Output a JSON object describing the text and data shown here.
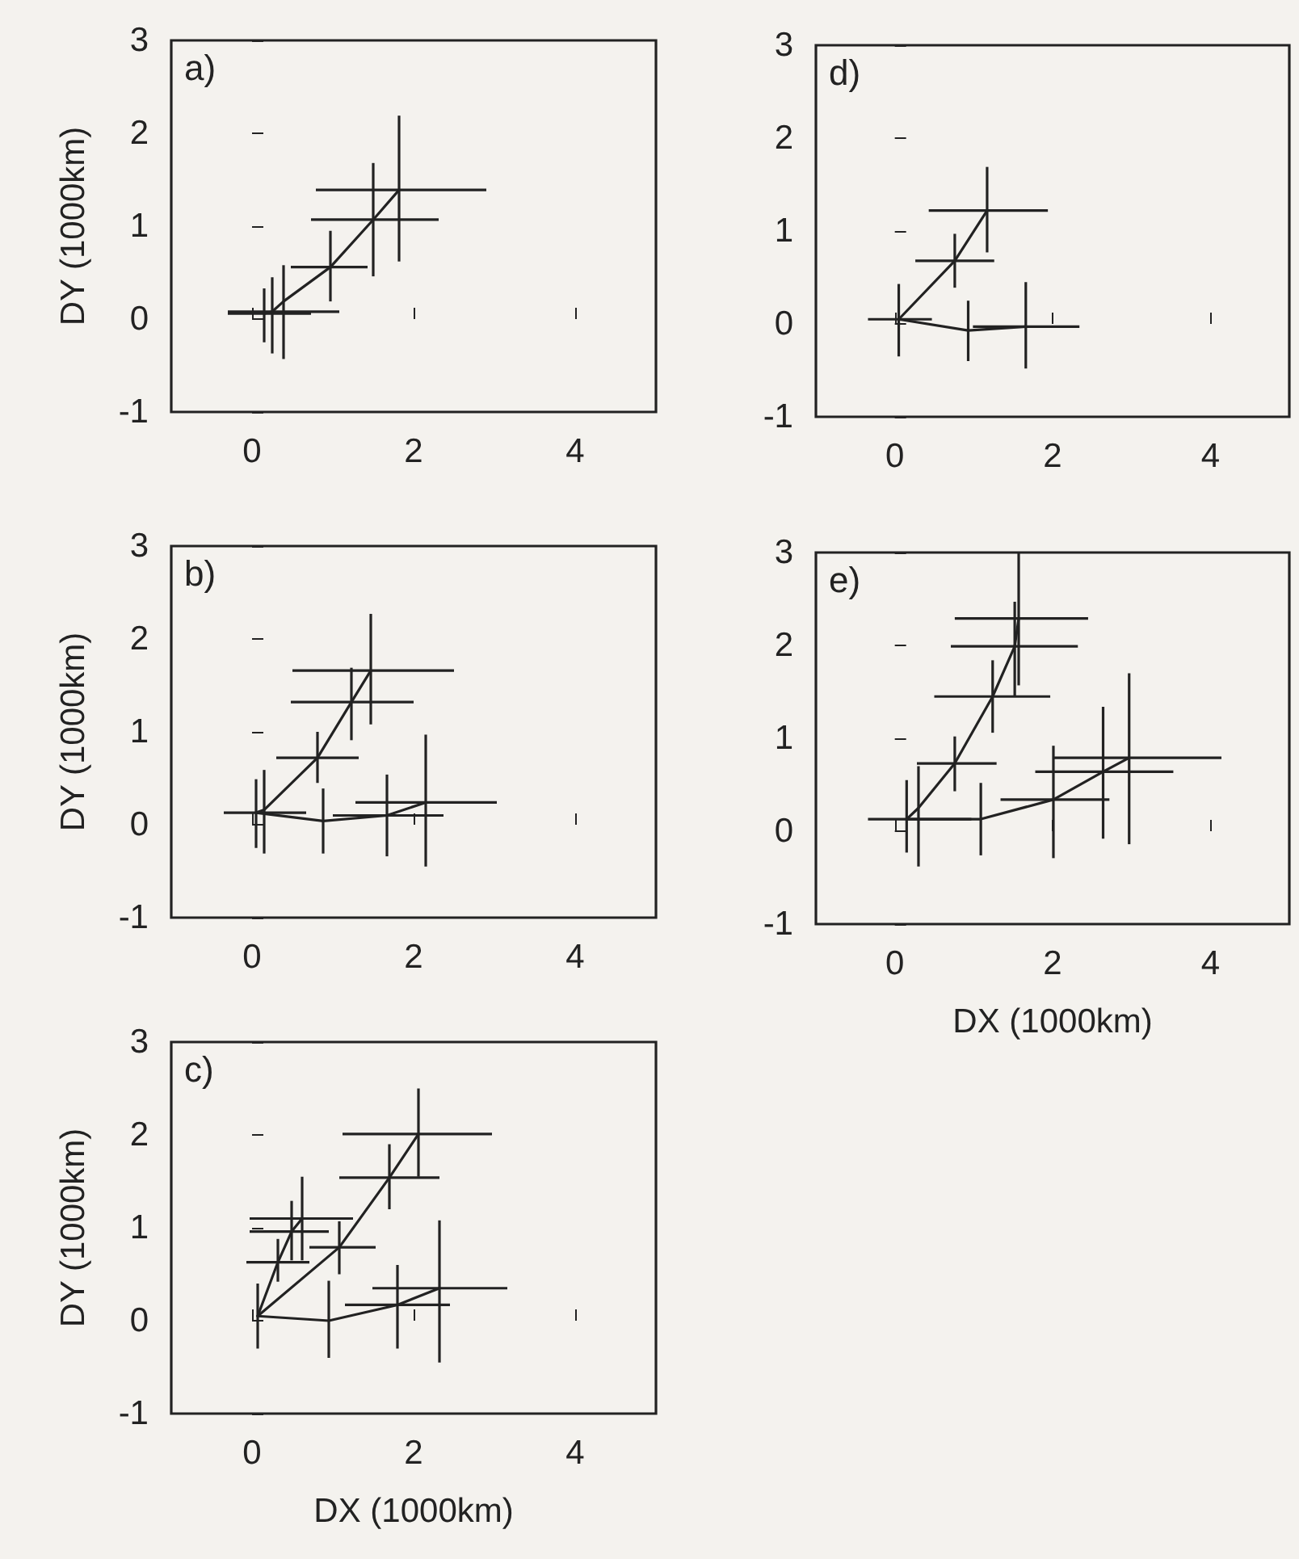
{
  "chart_data": [
    {
      "type": "line",
      "ylabel": "DY (1000km)",
      "annotations": [
        "a)"
      ],
      "xlim": [
        -1,
        5
      ],
      "xticks": [
        0,
        2,
        4
      ],
      "ylim": [
        -1,
        3
      ],
      "yticks": [
        -1,
        0,
        1,
        2,
        3
      ],
      "grid": false,
      "marker": "none",
      "line_style": "solid",
      "series": [
        {
          "color": "#222222",
          "x": [
            0.15,
            0.25,
            0.39,
            0.97,
            1.5,
            1.82
          ],
          "values": [
            0.06,
            0.08,
            0.19,
            0.56,
            1.07,
            1.39
          ],
          "xerrors": [
            [
              -0.3,
              0.73
            ],
            [
              -0.3,
              1.08
            ],
            null,
            [
              0.48,
              1.43
            ],
            [
              0.73,
              2.31
            ],
            [
              0.79,
              2.9
            ]
          ],
          "errors": [
            [
              -0.25,
              0.33
            ],
            [
              -0.37,
              0.45
            ],
            [
              -0.43,
              0.58
            ],
            [
              0.19,
              0.95
            ],
            [
              0.46,
              1.68
            ],
            [
              0.62,
              2.19
            ]
          ]
        }
      ]
    },
    {
      "type": "line",
      "ylabel": "DY (1000km)",
      "annotations": [
        "b)"
      ],
      "xlim": [
        -1,
        5
      ],
      "xticks": [
        0,
        2,
        4
      ],
      "ylim": [
        -1,
        3
      ],
      "yticks": [
        -1,
        0,
        1,
        2,
        3
      ],
      "grid": false,
      "marker": "none",
      "line_style": "solid",
      "series": [
        {
          "color": "#222222",
          "x": [
            0.05,
            0.15,
            0.81,
            1.23,
            1.47
          ],
          "values": [
            0.13,
            0.16,
            0.72,
            1.32,
            1.66
          ],
          "xerrors": [
            [
              -0.35,
              0.67
            ],
            null,
            [
              0.3,
              1.32
            ],
            [
              0.48,
              2.0
            ],
            [
              0.5,
              2.5
            ]
          ],
          "errors": [
            [
              -0.25,
              0.49
            ],
            [
              -0.31,
              0.59
            ],
            [
              0.45,
              1.0
            ],
            [
              0.91,
              1.69
            ],
            [
              1.08,
              2.27
            ]
          ]
        },
        {
          "color": "#222222",
          "x": [
            0.05,
            0.88,
            1.67,
            2.15
          ],
          "values": [
            0.13,
            0.04,
            0.1,
            0.24
          ],
          "xerrors": [
            null,
            null,
            [
              1.0,
              2.37
            ],
            [
              1.28,
              3.03
            ]
          ],
          "errors": [
            null,
            [
              -0.31,
              0.39
            ],
            [
              -0.34,
              0.54
            ],
            [
              -0.45,
              0.97
            ]
          ]
        }
      ]
    },
    {
      "type": "line",
      "ylabel": "DY (1000km)",
      "xlabel": "DX (1000km)",
      "annotations": [
        "c)"
      ],
      "xlim": [
        -1,
        5
      ],
      "xticks": [
        0,
        2,
        4
      ],
      "ylim": [
        -1,
        3
      ],
      "yticks": [
        -1,
        0,
        1,
        2,
        3
      ],
      "grid": false,
      "marker": "none",
      "line_style": "solid",
      "series": [
        {
          "color": "#222222",
          "x": [
            0.07,
            0.32,
            0.49,
            0.62
          ],
          "values": [
            0.05,
            0.63,
            0.96,
            1.1
          ],
          "xerrors": [
            null,
            [
              -0.07,
              0.71
            ],
            [
              -0.03,
              0.95
            ],
            [
              -0.03,
              1.25
            ]
          ],
          "errors": [
            [
              -0.3,
              0.4
            ],
            [
              0.42,
              0.88
            ],
            [
              0.65,
              1.29
            ],
            [
              0.65,
              1.55
            ]
          ]
        },
        {
          "color": "#222222",
          "x": [
            0.07,
            1.08,
            1.7,
            2.06
          ],
          "values": [
            0.05,
            0.79,
            1.54,
            2.01
          ],
          "xerrors": [
            null,
            [
              0.71,
              1.53
            ],
            [
              1.08,
              2.32
            ],
            [
              1.12,
              2.97
            ]
          ],
          "errors": [
            null,
            [
              0.5,
              1.07
            ],
            [
              1.2,
              1.9
            ],
            [
              1.55,
              2.5
            ]
          ]
        },
        {
          "color": "#222222",
          "x": [
            0.07,
            0.95,
            1.8,
            2.32
          ],
          "values": [
            0.05,
            0.0,
            0.17,
            0.35
          ],
          "xerrors": [
            null,
            null,
            [
              1.15,
              2.45
            ],
            [
              1.49,
              3.16
            ]
          ],
          "errors": [
            null,
            [
              -0.4,
              0.43
            ],
            [
              -0.3,
              0.6
            ],
            [
              -0.45,
              1.08
            ]
          ]
        }
      ]
    },
    {
      "type": "line",
      "annotations": [
        "d)"
      ],
      "xlim": [
        -1,
        5
      ],
      "xticks": [
        0,
        2,
        4
      ],
      "ylim": [
        -1,
        3
      ],
      "yticks": [
        -1,
        0,
        1,
        2,
        3
      ],
      "grid": false,
      "marker": "none",
      "line_style": "solid",
      "series": [
        {
          "color": "#222222",
          "x": [
            0.05,
            0.76,
            1.17
          ],
          "values": [
            0.05,
            0.68,
            1.22
          ],
          "xerrors": [
            [
              -0.34,
              0.47
            ],
            [
              0.26,
              1.26
            ],
            [
              0.43,
              1.94
            ]
          ],
          "errors": [
            [
              -0.35,
              0.43
            ],
            [
              0.39,
              0.97
            ],
            [
              0.77,
              1.69
            ]
          ]
        },
        {
          "color": "#222222",
          "x": [
            0.05,
            0.93,
            1.66
          ],
          "values": [
            0.05,
            -0.07,
            -0.03
          ],
          "xerrors": [
            null,
            null,
            [
              0.99,
              2.34
            ]
          ],
          "errors": [
            null,
            [
              -0.4,
              0.25
            ],
            [
              -0.48,
              0.45
            ]
          ]
        }
      ]
    },
    {
      "type": "line",
      "xlabel": "DX (1000km)",
      "annotations": [
        "e)"
      ],
      "xlim": [
        -1,
        5
      ],
      "xticks": [
        0,
        2,
        4
      ],
      "ylim": [
        -1,
        3
      ],
      "yticks": [
        -1,
        0,
        1,
        2,
        3
      ],
      "grid": false,
      "marker": "none",
      "line_style": "solid",
      "series": [
        {
          "color": "#222222",
          "x": [
            0.15,
            0.3,
            0.76,
            1.24,
            1.52,
            1.57
          ],
          "values": [
            0.13,
            0.25,
            0.73,
            1.45,
            1.99,
            2.29
          ],
          "xerrors": [
            [
              -0.34,
              0.97
            ],
            null,
            [
              0.28,
              1.29
            ],
            [
              0.5,
              1.97
            ],
            [
              0.71,
              2.32
            ],
            [
              0.76,
              2.45
            ]
          ],
          "errors": [
            [
              -0.23,
              0.55
            ],
            [
              -0.38,
              0.7
            ],
            [
              0.43,
              1.02
            ],
            [
              1.06,
              1.84
            ],
            [
              1.45,
              2.47
            ],
            [
              1.57,
              3.0
            ]
          ]
        },
        {
          "color": "#222222",
          "x": [
            0.15,
            1.09,
            2.01,
            2.64,
            2.97
          ],
          "values": [
            0.13,
            0.13,
            0.34,
            0.64,
            0.79
          ],
          "xerrors": [
            null,
            null,
            [
              1.34,
              2.72
            ],
            [
              1.78,
              3.53
            ],
            [
              2.0,
              4.14
            ]
          ],
          "errors": [
            null,
            [
              -0.26,
              0.52
            ],
            [
              -0.29,
              0.92
            ],
            [
              -0.08,
              1.34
            ],
            [
              -0.14,
              1.7
            ]
          ]
        }
      ]
    }
  ]
}
